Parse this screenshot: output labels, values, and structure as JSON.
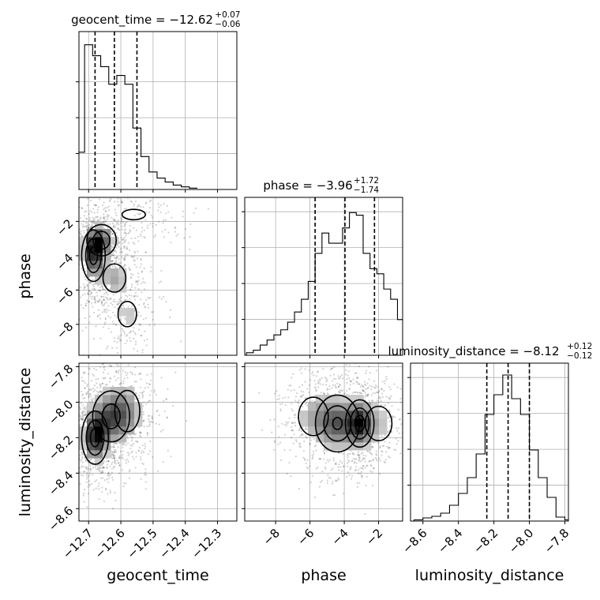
{
  "chart_data": {
    "type": "corner",
    "grid": true,
    "parameters": [
      "geocent_time",
      "phase",
      "luminosity_distance"
    ],
    "titles": [
      {
        "param": "geocent_time",
        "prefix": "geocent_time = ",
        "value": "−12.62",
        "plus": "+0.07",
        "minus": "−0.06"
      },
      {
        "param": "phase",
        "prefix": "phase = ",
        "value": "−3.96",
        "plus": "+1.72",
        "minus": "−1.74"
      },
      {
        "param": "luminosity_distance",
        "prefix": "luminosity_distance = ",
        "value": "−8.12",
        "plus": "+0.12",
        "minus": "−0.12"
      }
    ],
    "axis_labels": {
      "x": [
        "geocent_time",
        "phase",
        "luminosity_distance"
      ],
      "y": [
        "phase",
        "luminosity_distance"
      ]
    },
    "ranges": {
      "geocent_time": [
        -12.73,
        -12.24
      ],
      "phase": [
        -9.8,
        -0.6
      ],
      "luminosity_distance": [
        -8.67,
        -7.78
      ]
    },
    "ticks": {
      "geocent_time": {
        "values": [
          -12.7,
          -12.6,
          -12.5,
          -12.4,
          -12.3
        ],
        "labels": [
          "−12.7",
          "−12.6",
          "−12.5",
          "−12.4",
          "−12.3"
        ]
      },
      "phase": {
        "values": [
          -8,
          -6,
          -4,
          -2
        ],
        "labels": [
          "−8",
          "−6",
          "−4",
          "−2"
        ]
      },
      "luminosity_distance": {
        "values": [
          -8.6,
          -8.4,
          -8.2,
          -8.0,
          -7.8
        ],
        "labels": [
          "−8.6",
          "−8.4",
          "−8.2",
          "−8.0",
          "−7.8"
        ]
      }
    },
    "quantiles": {
      "geocent_time": [
        -12.68,
        -12.62,
        -12.55
      ],
      "phase": [
        -5.7,
        -3.96,
        -2.24
      ],
      "luminosity_distance": [
        -8.24,
        -8.12,
        -8.0
      ]
    },
    "histograms": {
      "geocent_time": {
        "x": [
          -12.725,
          -12.7,
          -12.675,
          -12.65,
          -12.625,
          -12.6,
          -12.575,
          -12.55,
          -12.525,
          -12.5,
          -12.475,
          -12.45,
          -12.425,
          -12.4,
          -12.375
        ],
        "counts": [
          8.5,
          33,
          30.5,
          28,
          24,
          26,
          24,
          14,
          7.5,
          4,
          2.6,
          1.7,
          1,
          0.6,
          0.3
        ]
      },
      "phase": {
        "x": [
          -9.5,
          -9.1,
          -8.7,
          -8.3,
          -7.9,
          -7.5,
          -7.1,
          -6.7,
          -6.3,
          -5.9,
          -5.5,
          -5.1,
          -4.7,
          -4.3,
          -3.9,
          -3.5,
          -3.1,
          -2.7,
          -2.3,
          -1.9,
          -1.5,
          -1.1,
          -0.7
        ],
        "counts": [
          0.5,
          1,
          2,
          3,
          4,
          5,
          6.5,
          8.5,
          11,
          14.5,
          20,
          24,
          22,
          22,
          25,
          28,
          27.5,
          20,
          17,
          16,
          13,
          11,
          7
        ]
      },
      "luminosity_distance": {
        "x": [
          -8.625,
          -8.575,
          -8.525,
          -8.475,
          -8.425,
          -8.375,
          -8.325,
          -8.275,
          -8.225,
          -8.175,
          -8.125,
          -8.075,
          -8.025,
          -7.975,
          -7.925,
          -7.875,
          -7.825,
          -7.775
        ],
        "counts": [
          0.3,
          0.8,
          1.2,
          2,
          4,
          7,
          11,
          17,
          27,
          32,
          37,
          31,
          27,
          18,
          11,
          6,
          1,
          0.3
        ]
      }
    },
    "density_peaks": {
      "phase_vs_geocent_time": [
        {
          "x": -12.685,
          "y": -4.0,
          "sx": 0.022,
          "sy": 0.9,
          "w": 1.0
        },
        {
          "x": -12.66,
          "y": -3.1,
          "sx": 0.03,
          "sy": 0.6,
          "w": 0.8
        },
        {
          "x": -12.62,
          "y": -5.3,
          "sx": 0.03,
          "sy": 0.7,
          "w": 0.5
        },
        {
          "x": -12.58,
          "y": -7.4,
          "sx": 0.035,
          "sy": 0.9,
          "w": 0.35
        },
        {
          "x": -12.56,
          "y": -1.6,
          "sx": 0.06,
          "sy": 0.5,
          "w": 0.3
        }
      ],
      "luminosity_distance_vs_geocent_time": [
        {
          "x": -12.68,
          "y": -8.2,
          "sx": 0.025,
          "sy": 0.09,
          "w": 1.0
        },
        {
          "x": -12.63,
          "y": -8.08,
          "sx": 0.04,
          "sy": 0.1,
          "w": 0.7
        },
        {
          "x": -12.58,
          "y": -8.05,
          "sx": 0.04,
          "sy": 0.12,
          "w": 0.4
        }
      ],
      "luminosity_distance_vs_phase": [
        {
          "x": -4.4,
          "y": -8.12,
          "sx": 0.8,
          "sy": 0.1,
          "w": 0.9
        },
        {
          "x": -3.1,
          "y": -8.12,
          "sx": 0.5,
          "sy": 0.08,
          "w": 1.0
        },
        {
          "x": -5.8,
          "y": -8.08,
          "sx": 0.8,
          "sy": 0.1,
          "w": 0.45
        },
        {
          "x": -2.0,
          "y": -8.12,
          "sx": 0.8,
          "sy": 0.1,
          "w": 0.4
        }
      ]
    }
  }
}
